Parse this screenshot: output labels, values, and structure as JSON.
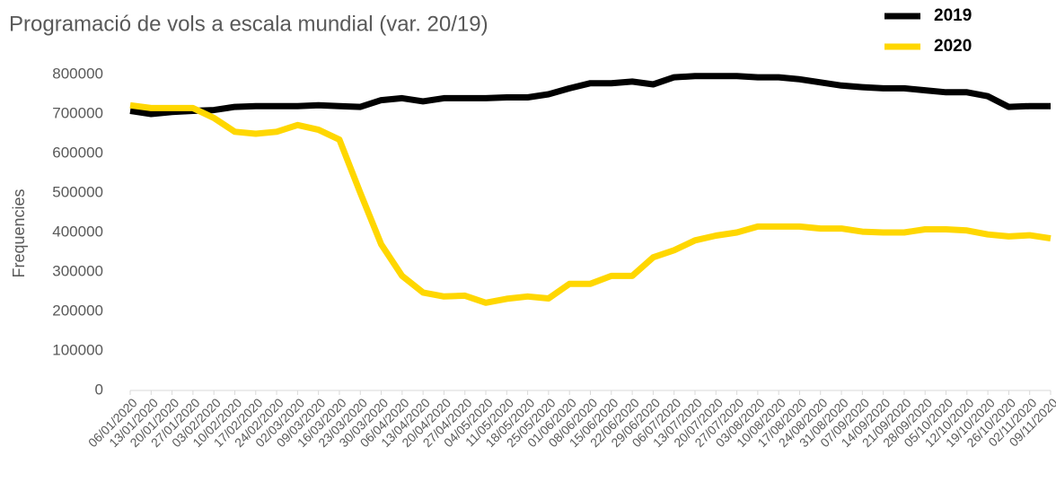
{
  "chart_data": {
    "type": "line",
    "title": "Programació de vols a escala mundial (var. 20/19)",
    "y_label": "Frequencies",
    "x": [
      "06/01/2020",
      "13/01/2020",
      "20/01/2020",
      "27/01/2020",
      "03/02/2020",
      "10/02/2020",
      "17/02/2020",
      "24/02/2020",
      "02/03/2020",
      "09/03/2020",
      "16/03/2020",
      "23/03/2020",
      "30/03/2020",
      "06/04/2020",
      "13/04/2020",
      "20/04/2020",
      "27/04/2020",
      "04/05/2020",
      "11/05/2020",
      "18/05/2020",
      "25/05/2020",
      "01/06/2020",
      "08/06/2020",
      "15/06/2020",
      "22/06/2020",
      "29/06/2020",
      "06/07/2020",
      "13/07/2020",
      "20/07/2020",
      "27/07/2020",
      "03/08/2020",
      "10/08/2020",
      "17/08/2020",
      "24/08/2020",
      "31/08/2020",
      "07/09/2020",
      "14/09/2020",
      "21/09/2020",
      "28/09/2020",
      "05/10/2020",
      "12/10/2020",
      "19/10/2020",
      "26/10/2020",
      "02/11/2020",
      "09/11/2020"
    ],
    "series": [
      {
        "name": "2019",
        "color": "#000000",
        "values": [
          708000,
          700000,
          705000,
          708000,
          710000,
          718000,
          720000,
          720000,
          720000,
          722000,
          720000,
          718000,
          735000,
          740000,
          732000,
          740000,
          740000,
          740000,
          742000,
          742000,
          750000,
          765000,
          778000,
          778000,
          782000,
          775000,
          793000,
          796000,
          796000,
          796000,
          793000,
          793000,
          788000,
          780000,
          772000,
          768000,
          765000,
          765000,
          760000,
          755000,
          755000,
          745000,
          718000,
          720000,
          720000
        ]
      },
      {
        "name": "2020",
        "color": "#ffd700",
        "values": [
          722000,
          715000,
          715000,
          715000,
          690000,
          655000,
          650000,
          655000,
          672000,
          660000,
          635000,
          500000,
          370000,
          290000,
          248000,
          238000,
          240000,
          222000,
          232000,
          238000,
          233000,
          270000,
          270000,
          290000,
          290000,
          337000,
          355000,
          380000,
          392000,
          400000,
          415000,
          415000,
          415000,
          410000,
          410000,
          402000,
          400000,
          400000,
          408000,
          408000,
          405000,
          395000,
          390000,
          393000,
          385000
        ]
      }
    ],
    "ylim": [
      0,
      800000
    ],
    "yticks": [
      0,
      100000,
      200000,
      300000,
      400000,
      500000,
      600000,
      700000,
      800000
    ],
    "grid": false,
    "legend": "top-right"
  }
}
